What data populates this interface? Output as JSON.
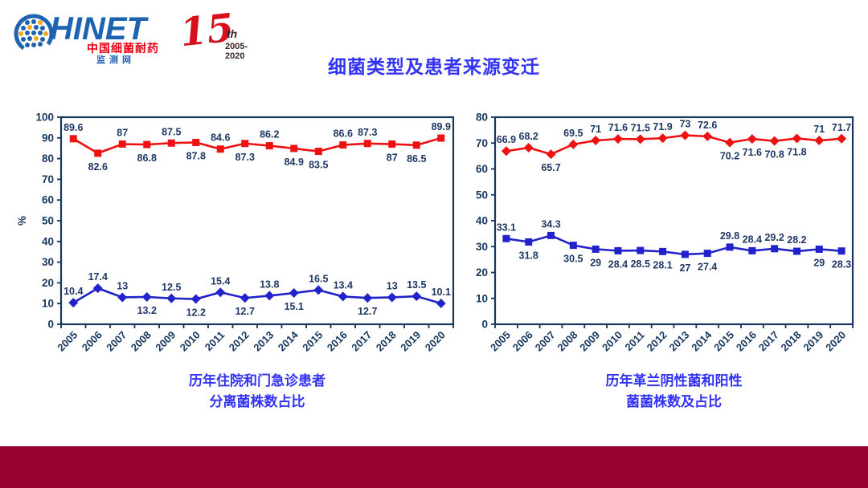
{
  "header": {
    "logo": {
      "brand": "HINET",
      "cn_name_line1": "中国细菌耐药",
      "cn_name_line2": "监测网",
      "anniversary_number": "15",
      "anniversary_suffix": "th",
      "anniversary_years": "2005-2020"
    },
    "title": "细菌类型及患者来源变迁"
  },
  "colors": {
    "title_blue": "#3333F3",
    "axis_navy": "#17375E",
    "data_label_navy": "#1F3864",
    "series_red": "#EE1111",
    "series_blue": "#2222CC",
    "footer_maroon": "#98002E",
    "logo_blue": "#1E63B0",
    "logo_red": "#E60012"
  },
  "chart_data": [
    {
      "type": "line",
      "caption": [
        "历年住院和门急诊患者",
        "分离菌株数占比"
      ],
      "categories": [
        "2005",
        "2006",
        "2007",
        "2008",
        "2009",
        "2010",
        "2011",
        "2012",
        "2013",
        "2014",
        "2015",
        "2016",
        "2017",
        "2018",
        "2019",
        "2020"
      ],
      "xlabel": "",
      "ylabel": "%",
      "ylim": [
        0,
        100
      ],
      "ytick_step": 10,
      "grid": false,
      "legend": "none",
      "series": [
        {
          "color": "#EE1111",
          "marker": "square",
          "values": [
            89.6,
            82.6,
            87,
            86.8,
            87.5,
            87.8,
            84.6,
            87.3,
            86.2,
            84.9,
            83.5,
            86.6,
            87.3,
            87,
            86.5,
            89.9
          ],
          "label_side": [
            "a",
            "b",
            "a",
            "b",
            "a",
            "b",
            "a",
            "b",
            "a",
            "b",
            "b",
            "a",
            "a",
            "b",
            "b",
            "a"
          ]
        },
        {
          "color": "#2222CC",
          "marker": "diamond",
          "values": [
            10.4,
            17.4,
            13,
            13.2,
            12.5,
            12.2,
            15.4,
            12.7,
            13.8,
            15.1,
            16.5,
            13.4,
            12.7,
            13,
            13.5,
            10.1
          ],
          "label_side": [
            "a",
            "a",
            "a",
            "b",
            "a",
            "b",
            "a",
            "b",
            "a",
            "b",
            "a",
            "a",
            "b",
            "a",
            "a",
            "a"
          ]
        }
      ]
    },
    {
      "type": "line",
      "caption": [
        "历年革兰阴性菌和阳性",
        "菌菌株数及占比"
      ],
      "categories": [
        "2005",
        "2006",
        "2007",
        "2008",
        "2009",
        "2010",
        "2011",
        "2012",
        "2013",
        "2014",
        "2015",
        "2016",
        "2017",
        "2018",
        "2019",
        "2020"
      ],
      "xlabel": "",
      "ylabel": "",
      "ylim": [
        0,
        80
      ],
      "ytick_step": 10,
      "grid": false,
      "legend": "none",
      "series": [
        {
          "color": "#EE1111",
          "marker": "diamond",
          "values": [
            66.9,
            68.2,
            65.7,
            69.5,
            71,
            71.6,
            71.5,
            71.9,
            73,
            72.6,
            70.2,
            71.6,
            70.8,
            71.8,
            71,
            71.7
          ],
          "label_side": [
            "a",
            "a",
            "b",
            "a",
            "a",
            "a",
            "a",
            "a",
            "a",
            "a",
            "b",
            "b",
            "b",
            "b",
            "a",
            "a"
          ]
        },
        {
          "color": "#2222CC",
          "marker": "square",
          "values": [
            33.1,
            31.8,
            34.3,
            30.5,
            29,
            28.4,
            28.5,
            28.1,
            27,
            27.4,
            29.8,
            28.4,
            29.2,
            28.2,
            29,
            28.3
          ],
          "label_side": [
            "a",
            "b",
            "a",
            "b",
            "b",
            "b",
            "b",
            "b",
            "b",
            "b",
            "a",
            "a",
            "a",
            "a",
            "b",
            "b"
          ]
        }
      ]
    }
  ]
}
